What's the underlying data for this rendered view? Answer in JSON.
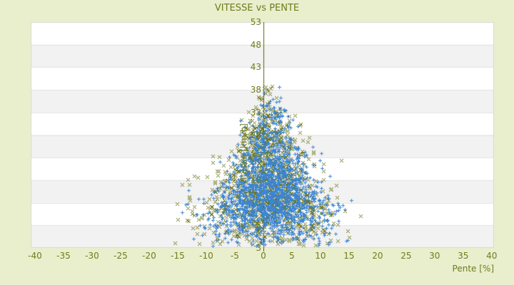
{
  "page": {
    "background_color": "#e9eecd"
  },
  "header": {
    "title": "VITESSE vs PENTE"
  },
  "chart_data": {
    "type": "scatter",
    "title": "VITESSE vs PENTE",
    "xlabel": "Pente [%]",
    "ylabel": "Vitesse [km/h]",
    "xlim": [
      -40.75,
      40.4
    ],
    "ylim": [
      3,
      53
    ],
    "x_ticks": [
      -40,
      -35,
      -30,
      -25,
      -20,
      -15,
      -10,
      -5,
      0,
      5,
      10,
      15,
      20,
      25,
      30,
      35,
      40
    ],
    "y_ticks": [
      53,
      48,
      43,
      38,
      33,
      28,
      23,
      18,
      13,
      8,
      3
    ],
    "grid": {
      "band_colors": [
        "#ffffff",
        "#f2f2f2"
      ],
      "line_color": "#e3e3e3",
      "border_color": "#d9d9d9",
      "bands_per_tick_interval": true
    },
    "zero_axis": {
      "x": 0,
      "color": "#59640f"
    },
    "axis_label_color": "#6f7c1c",
    "legend": "none",
    "series": [
      {
        "name": "serie-olive",
        "marker": "x",
        "color": "#6d7418",
        "count": 1350,
        "seed": 101,
        "distribution": {
          "y_mixture": {
            "weights": [
              0.55,
              0.31,
              0.14
            ],
            "means": [
              12,
              20,
              28.5
            ],
            "sds": [
              4.8,
              5.8,
              4.2
            ]
          },
          "y_clip": [
            3.4,
            39.0
          ],
          "x_mean": 0.9,
          "x_sigma_base": 6.8,
          "x_sigma_slope": 0.165,
          "x_sigma_min": 0.9,
          "x_clip": [
            -15.5,
            17.5
          ],
          "halo_fraction": 0.05,
          "halo_scale": 1.8
        }
      },
      {
        "name": "serie-blue",
        "marker": "+",
        "color": "#3c86d6",
        "count": 1600,
        "seed": 202,
        "distribution": {
          "y_mixture": {
            "weights": [
              0.62,
              0.29,
              0.09
            ],
            "means": [
              12,
              19.5,
              28
            ],
            "sds": [
              4.8,
              5.6,
              4.2
            ]
          },
          "y_clip": [
            3.4,
            38.8
          ],
          "x_mean": 1.4,
          "x_sigma_base": 6.5,
          "x_sigma_slope": 0.16,
          "x_sigma_min": 0.8,
          "x_clip": [
            -14.5,
            17.0
          ],
          "halo_fraction": 0.02,
          "halo_scale": 1.5
        }
      }
    ]
  }
}
